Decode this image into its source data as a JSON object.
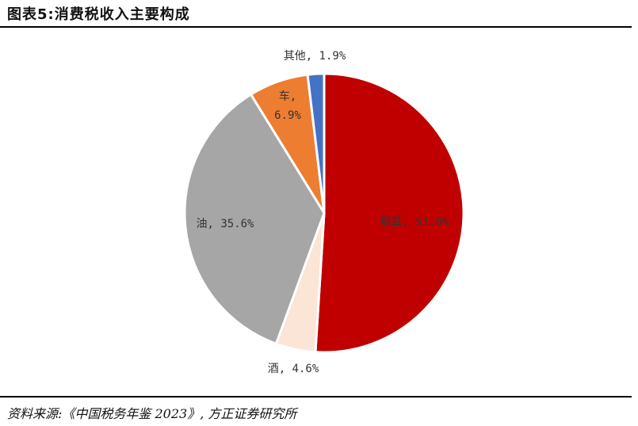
{
  "header": {
    "title": "图表5:消费税收入主要构成"
  },
  "footer": {
    "source": "资料来源:《中国税务年鉴 2023》, 方正证券研究所"
  },
  "colors": {
    "tobacco": "#c00000",
    "liquor": "#fbe5d6",
    "oil": "#a6a6a6",
    "car": "#ed7d31",
    "other": "#4472c4"
  },
  "chart_data": {
    "type": "pie",
    "title": "消费税收入主要构成",
    "slices": [
      {
        "name": "烟草",
        "value": 51.0,
        "label": "烟草, 51.0%",
        "color": "#c00000"
      },
      {
        "name": "酒",
        "value": 4.6,
        "label": "酒, 4.6%",
        "color": "#fbe5d6"
      },
      {
        "name": "油",
        "value": 35.6,
        "label": "油, 35.6%",
        "color": "#a6a6a6"
      },
      {
        "name": "车",
        "value": 6.9,
        "label": "车,\n6.9%",
        "color": "#ed7d31"
      },
      {
        "name": "其他",
        "value": 1.9,
        "label": "其他, 1.9%",
        "color": "#4472c4"
      }
    ],
    "start_angle": "12 o'clock",
    "direction": "clockwise",
    "legend": "none"
  }
}
